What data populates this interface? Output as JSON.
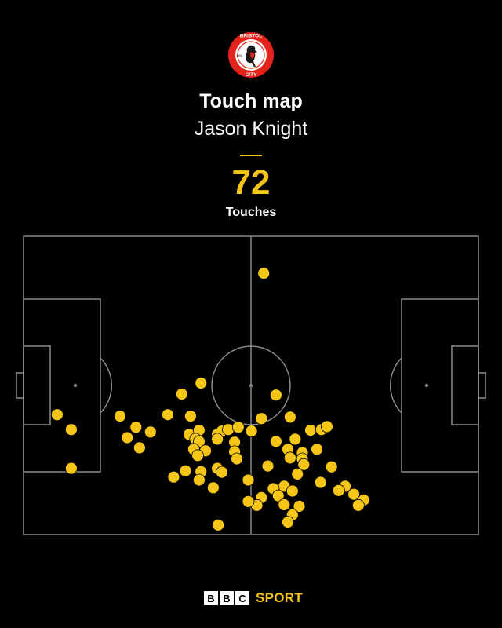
{
  "header": {
    "title": "Touch map",
    "player": "Jason Knight",
    "touches_value": "72",
    "touches_label": "Touches"
  },
  "crest": {
    "top_text": "BRISTOL",
    "bottom_text": "CITY",
    "year_text": "1894",
    "icon": "robin-crest-icon"
  },
  "brand": {
    "letters": [
      "B",
      "B",
      "C"
    ],
    "sport_label": "SPORT"
  },
  "colors": {
    "background": "#000000",
    "pitch_lines": "#8a8a8a",
    "touch": "#f5c518",
    "accent": "#f5c518",
    "crest_red": "#e32219"
  },
  "chart_data": {
    "type": "scatter",
    "title": "Touch map",
    "subtitle": "Jason Knight",
    "total_touches": 72,
    "xlim": [
      0,
      100
    ],
    "ylim": [
      0,
      100
    ],
    "points": [
      [
        52.8,
        12.4
      ],
      [
        39.0,
        49.2
      ],
      [
        34.8,
        52.9
      ],
      [
        55.5,
        53.2
      ],
      [
        7.4,
        59.8
      ],
      [
        21.2,
        60.3
      ],
      [
        31.7,
        59.8
      ],
      [
        36.7,
        60.3
      ],
      [
        52.3,
        61.1
      ],
      [
        58.6,
        60.6
      ],
      [
        10.5,
        64.8
      ],
      [
        24.7,
        64.0
      ],
      [
        27.9,
        65.6
      ],
      [
        36.4,
        66.4
      ],
      [
        38.6,
        65.0
      ],
      [
        42.6,
        66.4
      ],
      [
        43.6,
        65.3
      ],
      [
        45.0,
        64.8
      ],
      [
        47.2,
        64.0
      ],
      [
        50.1,
        65.3
      ],
      [
        63.1,
        65.0
      ],
      [
        65.5,
        64.8
      ],
      [
        66.7,
        63.8
      ],
      [
        22.8,
        67.5
      ],
      [
        37.8,
        68.0
      ],
      [
        38.6,
        68.8
      ],
      [
        42.6,
        68.0
      ],
      [
        46.4,
        69.0
      ],
      [
        55.5,
        68.8
      ],
      [
        59.7,
        68.0
      ],
      [
        25.5,
        70.9
      ],
      [
        37.4,
        71.4
      ],
      [
        40.0,
        71.9
      ],
      [
        46.4,
        72.2
      ],
      [
        58.1,
        71.4
      ],
      [
        61.3,
        72.5
      ],
      [
        64.5,
        71.4
      ],
      [
        38.3,
        73.5
      ],
      [
        46.9,
        74.6
      ],
      [
        58.6,
        74.3
      ],
      [
        61.3,
        74.6
      ],
      [
        53.7,
        77.0
      ],
      [
        61.6,
        76.5
      ],
      [
        67.7,
        77.3
      ],
      [
        10.5,
        77.8
      ],
      [
        35.6,
        78.6
      ],
      [
        39.0,
        78.9
      ],
      [
        42.6,
        77.8
      ],
      [
        43.6,
        79.1
      ],
      [
        60.2,
        79.7
      ],
      [
        33.0,
        80.7
      ],
      [
        38.6,
        81.7
      ],
      [
        49.4,
        81.7
      ],
      [
        65.3,
        82.5
      ],
      [
        70.7,
        83.8
      ],
      [
        41.7,
        84.3
      ],
      [
        57.3,
        83.8
      ],
      [
        54.9,
        84.6
      ],
      [
        59.1,
        85.4
      ],
      [
        56.0,
        87.0
      ],
      [
        52.3,
        87.6
      ],
      [
        69.3,
        85.2
      ],
      [
        72.6,
        86.5
      ],
      [
        74.8,
        88.4
      ],
      [
        73.6,
        90.2
      ],
      [
        51.3,
        90.2
      ],
      [
        49.4,
        88.9
      ],
      [
        57.3,
        90.0
      ],
      [
        60.6,
        90.5
      ],
      [
        59.1,
        93.4
      ],
      [
        42.8,
        96.8
      ],
      [
        58.1,
        95.8
      ]
    ]
  }
}
